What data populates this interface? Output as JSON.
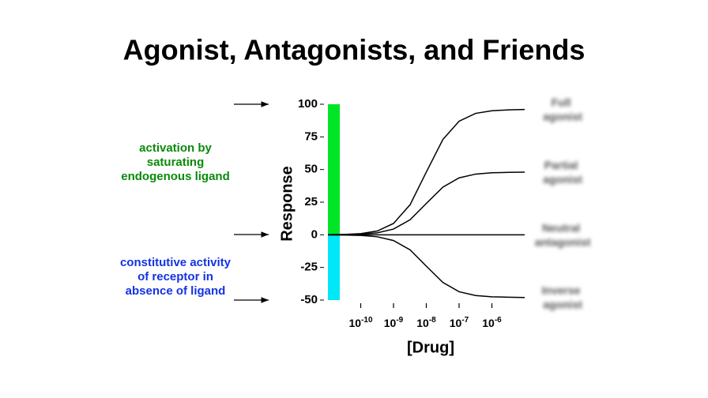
{
  "chart_data": {
    "type": "line",
    "title": "Agonist, Antagonists, and Friends",
    "x_label": "[Drug]",
    "y_label": "Response",
    "xscale": "log",
    "x": [
      1e-11,
      3.2e-11,
      1e-10,
      3.2e-10,
      1e-09,
      3.2e-09,
      1e-08,
      3.2e-08,
      1e-07,
      3.2e-07,
      1e-06,
      3.2e-06,
      1e-05
    ],
    "series": [
      {
        "name": "Full agonist",
        "color": "#000000",
        "values": [
          0.1,
          0.3,
          0.9,
          2.9,
          8.7,
          23,
          48,
          73,
          87,
          93,
          95,
          95.7,
          96
        ]
      },
      {
        "name": "Partial agonist",
        "color": "#000000",
        "values": [
          0,
          0.2,
          0.5,
          1.5,
          4.4,
          11.5,
          24,
          36.5,
          43.6,
          46.5,
          47.5,
          47.8,
          48
        ]
      },
      {
        "name": "Neutral antagonist",
        "color": "#000000",
        "values": [
          0,
          0,
          0,
          0,
          0,
          0,
          0,
          0,
          0,
          0,
          0,
          0,
          0
        ]
      },
      {
        "name": "Inverse agonist",
        "color": "#000000",
        "values": [
          0,
          -0.2,
          -0.5,
          -1.5,
          -4.4,
          -11.5,
          -24,
          -36.5,
          -43.6,
          -46.5,
          -47.5,
          -47.8,
          -48
        ]
      }
    ],
    "bands": [
      {
        "from": 0,
        "to": 100,
        "color": "#00e626"
      },
      {
        "from": 0,
        "to": -50,
        "color": "#00e8f8"
      }
    ],
    "annotations": [
      {
        "lines": [
          "activation by",
          "saturating",
          "endogenous ligand"
        ],
        "color": "#0a8a0a"
      },
      {
        "lines": [
          "constitutive activity",
          "of receptor in",
          "absence of ligand"
        ],
        "color": "#1432e6"
      }
    ],
    "xlim": [
      1e-11,
      1e-05
    ],
    "ylim": [
      -50,
      100
    ],
    "xticks": [
      {
        "value": 1e-10,
        "label": "10-10"
      },
      {
        "value": 1e-09,
        "label": "10-9"
      },
      {
        "value": 1e-08,
        "label": "10-8"
      },
      {
        "value": 1e-07,
        "label": "10-7"
      },
      {
        "value": 1e-06,
        "label": "10-6"
      }
    ],
    "yticks": [
      -50,
      -25,
      0,
      25,
      50,
      75,
      100
    ]
  }
}
